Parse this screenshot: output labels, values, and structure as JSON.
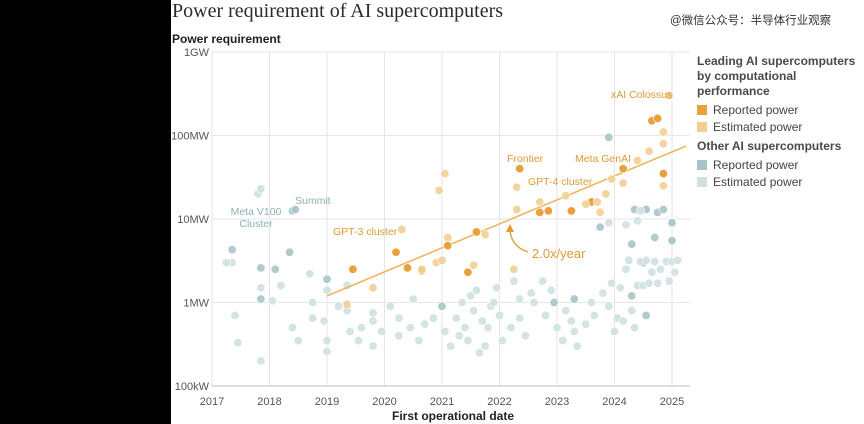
{
  "title": "Power requirement of AI supercomputers",
  "watermark": "@微信公众号：半导体行业观察",
  "colors": {
    "leading_reported": "#e8a13c",
    "leading_estimated": "#f2cf93",
    "other_reported": "#a7c5c8",
    "other_estimated": "#cfe0e0",
    "trend": "#f0b15a",
    "grid": "#e6e6e6"
  },
  "legend": {
    "leading_title_1": "Leading AI supercomputers",
    "leading_title_2": "by computational performance",
    "leading_reported": "Reported power",
    "leading_estimated": "Estimated power",
    "other_title": "Other AI supercomputers",
    "other_reported": "Reported power",
    "other_estimated": "Estimated power"
  },
  "chart_data": {
    "type": "scatter",
    "title": "Power requirement of AI supercomputers",
    "xlabel": "First operational date",
    "ylabel": "Power requirement",
    "y_scale": "log",
    "xlim": [
      2017,
      2025.3
    ],
    "ylim_watts": [
      100000,
      1000000000
    ],
    "x_ticks": [
      "2017",
      "2018",
      "2019",
      "2020",
      "2021",
      "2022",
      "2023",
      "2024",
      "2025"
    ],
    "y_ticks": [
      {
        "value": 100000,
        "label": "100kW"
      },
      {
        "value": 1000000,
        "label": "1MW"
      },
      {
        "value": 10000000,
        "label": "10MW"
      },
      {
        "value": 100000000,
        "label": "100MW"
      },
      {
        "value": 1000000000,
        "label": "1GW"
      }
    ],
    "trend": {
      "label": "2.0x/year",
      "x": [
        2019.0,
        2025.25
      ],
      "y_watts": [
        1200000,
        75000000
      ]
    },
    "annotations": [
      {
        "text": "xAI Colossus",
        "x": 2024.9,
        "y": 300000000
      },
      {
        "text": "Frontier",
        "x": 2022.3,
        "y": 40000000
      },
      {
        "text": "Meta GenAI",
        "x": 2023.75,
        "y": 40000000
      },
      {
        "text": "GPT-4 cluster",
        "x": 2022.85,
        "y": 21000000
      },
      {
        "text": "GPT-3 cluster",
        "x": 2020.05,
        "y": 7000000
      },
      {
        "text": "Summit",
        "x": 2018.45,
        "y": 20000000
      },
      {
        "text": "Meta V100",
        "x": 2017.75,
        "y": 12000000
      },
      {
        "text": "Cluster",
        "x": 2017.75,
        "y": 8500000
      }
    ],
    "series": [
      {
        "name": "Leading AI supercomputers — Reported power",
        "points": [
          [
            2019.45,
            2500000
          ],
          [
            2020.2,
            4000000
          ],
          [
            2020.4,
            2600000
          ],
          [
            2020.65,
            2400000
          ],
          [
            2021.1,
            4800000
          ],
          [
            2021.45,
            2300000
          ],
          [
            2021.6,
            7000000
          ],
          [
            2022.35,
            40000000
          ],
          [
            2022.7,
            12000000
          ],
          [
            2022.85,
            12500000
          ],
          [
            2023.25,
            12500000
          ],
          [
            2023.6,
            16000000
          ],
          [
            2024.15,
            40000000
          ],
          [
            2024.65,
            150000000
          ],
          [
            2024.75,
            160000000
          ],
          [
            2024.85,
            35000000
          ]
        ]
      },
      {
        "name": "Leading AI supercomputers — Estimated power",
        "points": [
          [
            2019.35,
            950000
          ],
          [
            2019.8,
            1500000
          ],
          [
            2020.3,
            7500000
          ],
          [
            2020.65,
            2500000
          ],
          [
            2020.9,
            3000000
          ],
          [
            2021.0,
            3200000
          ],
          [
            2021.1,
            6000000
          ],
          [
            2020.95,
            22000000
          ],
          [
            2021.05,
            35000000
          ],
          [
            2021.55,
            2800000
          ],
          [
            2021.75,
            6500000
          ],
          [
            2022.25,
            2500000
          ],
          [
            2022.3,
            13000000
          ],
          [
            2022.3,
            24000000
          ],
          [
            2022.7,
            16000000
          ],
          [
            2023.15,
            19000000
          ],
          [
            2023.5,
            15000000
          ],
          [
            2023.7,
            16000000
          ],
          [
            2023.75,
            12000000
          ],
          [
            2023.85,
            20000000
          ],
          [
            2023.95,
            30000000
          ],
          [
            2024.15,
            27000000
          ],
          [
            2024.4,
            50000000
          ],
          [
            2024.6,
            65000000
          ],
          [
            2024.85,
            80000000
          ],
          [
            2024.85,
            110000000
          ],
          [
            2024.95,
            300000000
          ],
          [
            2024.85,
            25000000
          ]
        ]
      },
      {
        "name": "Other AI supercomputers — Reported power",
        "points": [
          [
            2017.35,
            4300000
          ],
          [
            2018.4,
            12500000
          ],
          [
            2018.45,
            13000000
          ],
          [
            2017.85,
            2600000
          ],
          [
            2018.1,
            2500000
          ],
          [
            2018.35,
            4000000
          ],
          [
            2017.85,
            1100000
          ],
          [
            2019.0,
            1900000
          ],
          [
            2023.9,
            95000000
          ],
          [
            2024.3,
            5000000
          ],
          [
            2024.5,
            3000000
          ],
          [
            2024.7,
            6000000
          ],
          [
            2025.0,
            9000000
          ],
          [
            2025.0,
            5500000
          ],
          [
            2023.75,
            8000000
          ],
          [
            2024.35,
            13000000
          ],
          [
            2024.55,
            13000000
          ],
          [
            2024.75,
            12000000
          ],
          [
            2024.85,
            13000000
          ],
          [
            2024.3,
            1200000
          ],
          [
            2024.55,
            700000
          ],
          [
            2022.95,
            1000000
          ],
          [
            2023.3,
            1100000
          ],
          [
            2021.0,
            900000
          ]
        ]
      },
      {
        "name": "Other AI supercomputers — Estimated power",
        "points": [
          [
            2017.35,
            3000000
          ],
          [
            2017.4,
            700000
          ],
          [
            2017.45,
            330000
          ],
          [
            2017.8,
            20000000
          ],
          [
            2017.85,
            23000000
          ],
          [
            2017.85,
            1500000
          ],
          [
            2017.85,
            200000
          ],
          [
            2018.05,
            1050000
          ],
          [
            2018.4,
            500000
          ],
          [
            2018.5,
            350000
          ],
          [
            2018.7,
            2200000
          ],
          [
            2018.75,
            1000000
          ],
          [
            2018.75,
            650000
          ],
          [
            2019.0,
            350000
          ],
          [
            2019.0,
            260000
          ],
          [
            2019.0,
            1400000
          ],
          [
            2019.35,
            800000
          ],
          [
            2019.4,
            450000
          ],
          [
            2019.55,
            350000
          ],
          [
            2019.6,
            500000
          ],
          [
            2019.8,
            750000
          ],
          [
            2019.8,
            600000
          ],
          [
            2019.8,
            300000
          ],
          [
            2019.95,
            450000
          ],
          [
            2020.1,
            900000
          ],
          [
            2020.25,
            650000
          ],
          [
            2020.25,
            400000
          ],
          [
            2020.45,
            500000
          ],
          [
            2020.5,
            1100000
          ],
          [
            2020.6,
            350000
          ],
          [
            2020.7,
            550000
          ],
          [
            2020.85,
            650000
          ],
          [
            2021.05,
            450000
          ],
          [
            2021.15,
            300000
          ],
          [
            2021.25,
            650000
          ],
          [
            2021.3,
            400000
          ],
          [
            2021.35,
            1000000
          ],
          [
            2021.4,
            500000
          ],
          [
            2021.45,
            350000
          ],
          [
            2021.5,
            1200000
          ],
          [
            2021.55,
            800000
          ],
          [
            2021.6,
            1400000
          ],
          [
            2021.65,
            250000
          ],
          [
            2021.7,
            600000
          ],
          [
            2021.75,
            300000
          ],
          [
            2021.8,
            500000
          ],
          [
            2021.85,
            900000
          ],
          [
            2021.95,
            1500000
          ],
          [
            2022.0,
            700000
          ],
          [
            2022.05,
            350000
          ],
          [
            2022.2,
            500000
          ],
          [
            2022.25,
            1800000
          ],
          [
            2022.35,
            650000
          ],
          [
            2022.45,
            400000
          ],
          [
            2022.6,
            1000000
          ],
          [
            2022.75,
            1800000
          ],
          [
            2022.8,
            700000
          ],
          [
            2022.9,
            1400000
          ],
          [
            2023.0,
            500000
          ],
          [
            2023.1,
            350000
          ],
          [
            2023.15,
            800000
          ],
          [
            2023.25,
            600000
          ],
          [
            2023.3,
            450000
          ],
          [
            2023.35,
            300000
          ],
          [
            2023.5,
            550000
          ],
          [
            2023.6,
            1000000
          ],
          [
            2023.65,
            700000
          ],
          [
            2023.8,
            1300000
          ],
          [
            2023.9,
            900000
          ],
          [
            2023.95,
            1700000
          ],
          [
            2024.0,
            450000
          ],
          [
            2024.05,
            650000
          ],
          [
            2024.1,
            1500000
          ],
          [
            2024.15,
            600000
          ],
          [
            2024.2,
            2500000
          ],
          [
            2024.25,
            3200000
          ],
          [
            2024.3,
            800000
          ],
          [
            2024.35,
            500000
          ],
          [
            2024.4,
            1600000
          ],
          [
            2024.45,
            3100000
          ],
          [
            2024.5,
            1600000
          ],
          [
            2024.55,
            3200000
          ],
          [
            2024.6,
            1700000
          ],
          [
            2024.65,
            2300000
          ],
          [
            2024.7,
            3100000
          ],
          [
            2024.75,
            1700000
          ],
          [
            2024.8,
            2500000
          ],
          [
            2024.9,
            3100000
          ],
          [
            2024.95,
            1800000
          ],
          [
            2025.0,
            3100000
          ],
          [
            2025.05,
            2300000
          ],
          [
            2025.1,
            3200000
          ],
          [
            2024.2,
            8500000
          ],
          [
            2024.4,
            9500000
          ],
          [
            2024.45,
            12500000
          ],
          [
            2023.9,
            9000000
          ],
          [
            2019.35,
            1600000
          ],
          [
            2019.2,
            900000
          ],
          [
            2018.95,
            600000
          ],
          [
            2018.2,
            1600000
          ],
          [
            2017.25,
            3000000
          ],
          [
            2021.9,
            1000000
          ],
          [
            2022.35,
            1100000
          ],
          [
            2022.55,
            1300000
          ]
        ]
      }
    ]
  }
}
